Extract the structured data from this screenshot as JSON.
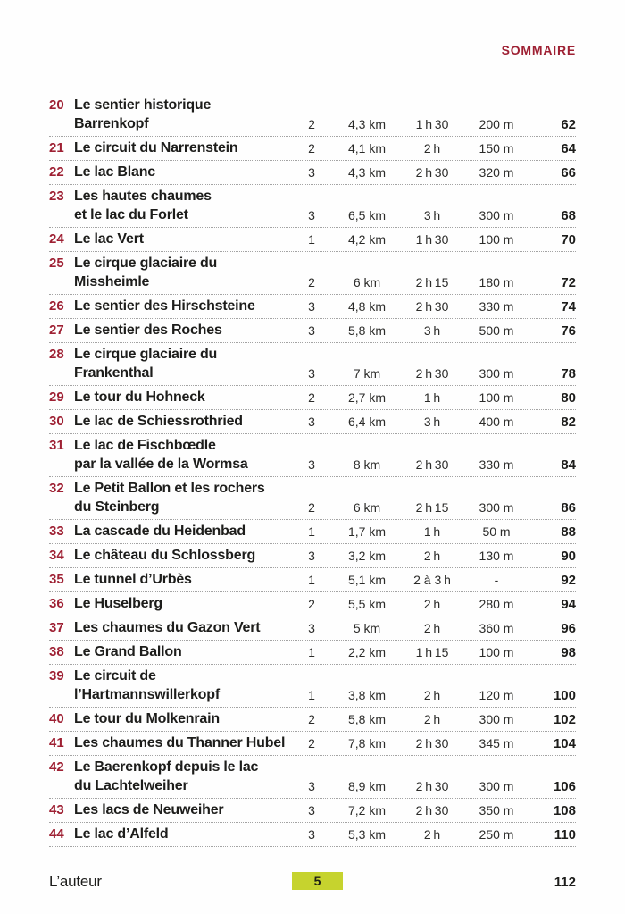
{
  "header": {
    "title": "SOMMAIRE"
  },
  "colors": {
    "accent_red": "#9e2033",
    "badge_green": "#c6d32e",
    "badge_text": "#1d1f14"
  },
  "columns": [
    "number",
    "title",
    "difficulty",
    "distance",
    "duration",
    "elevation",
    "page"
  ],
  "entries": [
    {
      "num": "20",
      "title": [
        "Le sentier historique Barrenkopf"
      ],
      "difficulty": "2",
      "distance": "4,3 km",
      "duration": "1 h 30",
      "elevation": "200 m",
      "page": "62"
    },
    {
      "num": "21",
      "title": [
        "Le circuit du Narrenstein"
      ],
      "difficulty": "2",
      "distance": "4,1 km",
      "duration": "2 h",
      "elevation": "150 m",
      "page": "64"
    },
    {
      "num": "22",
      "title": [
        "Le lac Blanc"
      ],
      "difficulty": "3",
      "distance": "4,3 km",
      "duration": "2 h 30",
      "elevation": "320 m",
      "page": "66"
    },
    {
      "num": "23",
      "title": [
        "Les hautes chaumes",
        "et le lac du Forlet"
      ],
      "difficulty": "3",
      "distance": "6,5 km",
      "duration": "3 h",
      "elevation": "300 m",
      "page": "68"
    },
    {
      "num": "24",
      "title": [
        "Le lac Vert"
      ],
      "difficulty": "1",
      "distance": "4,2 km",
      "duration": "1 h 30",
      "elevation": "100 m",
      "page": "70"
    },
    {
      "num": "25",
      "title": [
        "Le cirque glaciaire du Missheimle"
      ],
      "difficulty": "2",
      "distance": "6 km",
      "duration": "2 h 15",
      "elevation": "180 m",
      "page": "72"
    },
    {
      "num": "26",
      "title": [
        "Le sentier des Hirschsteine"
      ],
      "difficulty": "3",
      "distance": "4,8 km",
      "duration": "2 h 30",
      "elevation": "330 m",
      "page": "74"
    },
    {
      "num": "27",
      "title": [
        "Le sentier des Roches"
      ],
      "difficulty": "3",
      "distance": "5,8 km",
      "duration": "3 h",
      "elevation": "500 m",
      "page": "76"
    },
    {
      "num": "28",
      "title": [
        "Le cirque glaciaire du Frankenthal"
      ],
      "difficulty": "3",
      "distance": "7 km",
      "duration": "2 h 30",
      "elevation": "300 m",
      "page": "78"
    },
    {
      "num": "29",
      "title": [
        "Le tour du Hohneck"
      ],
      "difficulty": "2",
      "distance": "2,7 km",
      "duration": "1 h",
      "elevation": "100 m",
      "page": "80"
    },
    {
      "num": "30",
      "title": [
        "Le lac de Schiessrothried"
      ],
      "difficulty": "3",
      "distance": "6,4 km",
      "duration": "3 h",
      "elevation": "400 m",
      "page": "82"
    },
    {
      "num": "31",
      "title": [
        "Le lac de Fischbœdle",
        "par la vallée de la Wormsa"
      ],
      "difficulty": "3",
      "distance": "8 km",
      "duration": "2 h 30",
      "elevation": "330 m",
      "page": "84"
    },
    {
      "num": "32",
      "title": [
        "Le Petit Ballon et les rochers",
        "du Steinberg"
      ],
      "difficulty": "2",
      "distance": "6 km",
      "duration": "2 h 15",
      "elevation": "300 m",
      "page": "86"
    },
    {
      "num": "33",
      "title": [
        "La cascade du Heidenbad"
      ],
      "difficulty": "1",
      "distance": "1,7 km",
      "duration": "1 h",
      "elevation": "50 m",
      "page": "88"
    },
    {
      "num": "34",
      "title": [
        "Le château du Schlossberg"
      ],
      "difficulty": "3",
      "distance": "3,2 km",
      "duration": "2 h",
      "elevation": "130 m",
      "page": "90"
    },
    {
      "num": "35",
      "title": [
        "Le tunnel d’Urbès"
      ],
      "difficulty": "1",
      "distance": "5,1 km",
      "duration": "2 à 3 h",
      "elevation": "-",
      "page": "92"
    },
    {
      "num": "36",
      "title": [
        "Le Huselberg"
      ],
      "difficulty": "2",
      "distance": "5,5 km",
      "duration": "2 h",
      "elevation": "280 m",
      "page": "94"
    },
    {
      "num": "37",
      "title": [
        "Les chaumes du Gazon Vert"
      ],
      "difficulty": "3",
      "distance": "5 km",
      "duration": "2 h",
      "elevation": "360 m",
      "page": "96"
    },
    {
      "num": "38",
      "title": [
        "Le Grand Ballon"
      ],
      "difficulty": "1",
      "distance": "2,2 km",
      "duration": "1 h 15",
      "elevation": "100 m",
      "page": "98"
    },
    {
      "num": "39",
      "title": [
        "Le circuit de l’Hartmannswillerkopf"
      ],
      "difficulty": "1",
      "distance": "3,8 km",
      "duration": "2 h",
      "elevation": "120 m",
      "page": "100"
    },
    {
      "num": "40",
      "title": [
        "Le tour du Molkenrain"
      ],
      "difficulty": "2",
      "distance": "5,8 km",
      "duration": "2 h",
      "elevation": "300 m",
      "page": "102"
    },
    {
      "num": "41",
      "title": [
        "Les chaumes du Thanner Hubel"
      ],
      "difficulty": "2",
      "distance": "7,8 km",
      "duration": "2 h 30",
      "elevation": "345 m",
      "page": "104"
    },
    {
      "num": "42",
      "title": [
        "Le Baerenkopf depuis le lac",
        "du Lachtelweiher"
      ],
      "difficulty": "3",
      "distance": "8,9 km",
      "duration": "2 h 30",
      "elevation": "300 m",
      "page": "106"
    },
    {
      "num": "43",
      "title": [
        "Les lacs de Neuweiher"
      ],
      "difficulty": "3",
      "distance": "7,2 km",
      "duration": "2 h 30",
      "elevation": "350 m",
      "page": "108"
    },
    {
      "num": "44",
      "title": [
        "Le lac d’Alfeld"
      ],
      "difficulty": "3",
      "distance": "5,3 km",
      "duration": "2 h",
      "elevation": "250 m",
      "page": "110"
    }
  ],
  "footer": {
    "author_label": "L’auteur",
    "author_page": "112",
    "page_number": "5"
  }
}
